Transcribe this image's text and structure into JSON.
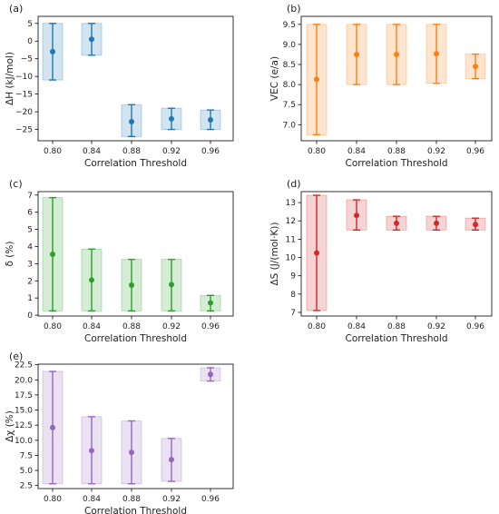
{
  "chart_data": [
    {
      "panel_label": "(a)",
      "type": "errorbar",
      "color": "#1f77b4",
      "xlabel": "Correlation Threshold",
      "ylabel": "ΔH (kJ/mol)",
      "categories": [
        "0.80",
        "0.84",
        "0.88",
        "0.92",
        "0.96"
      ],
      "mean": [
        -3.0,
        0.5,
        -22.8,
        -22.0,
        -22.3
      ],
      "low": [
        -11.0,
        -4.0,
        -27.0,
        -25.0,
        -25.0
      ],
      "high": [
        5.0,
        5.0,
        -18.0,
        -19.0,
        -19.5
      ],
      "ylim": [
        -28.2,
        7.0
      ],
      "yticks": [
        5,
        0,
        -5,
        -10,
        -15,
        -20,
        -25
      ],
      "ytick_labels": [
        "5",
        "0",
        "−5",
        "−10",
        "−15",
        "−20",
        "−25"
      ]
    },
    {
      "panel_label": "(b)",
      "type": "errorbar",
      "color": "#ff7f0e",
      "xlabel": "Correlation Threshold",
      "ylabel": "VEC (e/a)",
      "categories": [
        "0.80",
        "0.84",
        "0.88",
        "0.92",
        "0.96"
      ],
      "mean": [
        8.13,
        8.75,
        8.75,
        8.77,
        8.45
      ],
      "low": [
        6.75,
        8.0,
        8.0,
        8.03,
        8.15
      ],
      "high": [
        9.5,
        9.5,
        9.5,
        9.5,
        8.76
      ],
      "ylim": [
        6.6,
        9.7
      ],
      "yticks": [
        7.0,
        7.5,
        8.0,
        8.5,
        9.0,
        9.5
      ],
      "ytick_labels": [
        "7.0",
        "7.5",
        "8.0",
        "8.5",
        "9.0",
        "9.5"
      ]
    },
    {
      "panel_label": "(c)",
      "type": "errorbar",
      "color": "#2ca02c",
      "xlabel": "Correlation Threshold",
      "ylabel": "δ (%)",
      "categories": [
        "0.80",
        "0.84",
        "0.88",
        "0.92",
        "0.96"
      ],
      "mean": [
        3.55,
        2.05,
        1.75,
        1.78,
        0.72
      ],
      "low": [
        0.25,
        0.25,
        0.25,
        0.25,
        0.25
      ],
      "high": [
        6.85,
        3.85,
        3.25,
        3.25,
        1.15
      ],
      "ylim": [
        -0.05,
        7.2
      ],
      "yticks": [
        0,
        1,
        2,
        3,
        4,
        5,
        6,
        7
      ],
      "ytick_labels": [
        "0",
        "1",
        "2",
        "3",
        "4",
        "5",
        "6",
        "7"
      ]
    },
    {
      "panel_label": "(d)",
      "type": "errorbar",
      "color": "#d62728",
      "xlabel": "Correlation Threshold",
      "ylabel": "ΔS (J/(mol·K))",
      "categories": [
        "0.80",
        "0.84",
        "0.88",
        "0.92",
        "0.96"
      ],
      "mean": [
        10.25,
        12.3,
        11.87,
        11.87,
        11.8
      ],
      "low": [
        7.1,
        11.5,
        11.5,
        11.5,
        11.5
      ],
      "high": [
        13.4,
        13.15,
        12.25,
        12.25,
        12.15
      ],
      "ylim": [
        6.8,
        13.6
      ],
      "yticks": [
        7,
        8,
        9,
        10,
        11,
        12,
        13
      ],
      "ytick_labels": [
        "7",
        "8",
        "9",
        "10",
        "11",
        "12",
        "13"
      ]
    },
    {
      "panel_label": "(e)",
      "type": "errorbar",
      "color": "#9467bd",
      "xlabel": "Correlation Threshold",
      "ylabel": "Δχ (%)",
      "categories": [
        "0.80",
        "0.84",
        "0.88",
        "0.92",
        "0.96"
      ],
      "mean": [
        12.1,
        8.3,
        8.0,
        6.8,
        20.9
      ],
      "low": [
        2.8,
        2.8,
        2.8,
        3.2,
        19.8
      ],
      "high": [
        21.4,
        13.9,
        13.2,
        10.3,
        22.0
      ],
      "ylim": [
        2.0,
        22.6
      ],
      "yticks": [
        2.5,
        5.0,
        7.5,
        10.0,
        12.5,
        15.0,
        17.5,
        20.0,
        22.5
      ],
      "ytick_labels": [
        "2.5",
        "5.0",
        "7.5",
        "10.0",
        "12.5",
        "15.0",
        "17.5",
        "20.0",
        "22.5"
      ]
    }
  ]
}
